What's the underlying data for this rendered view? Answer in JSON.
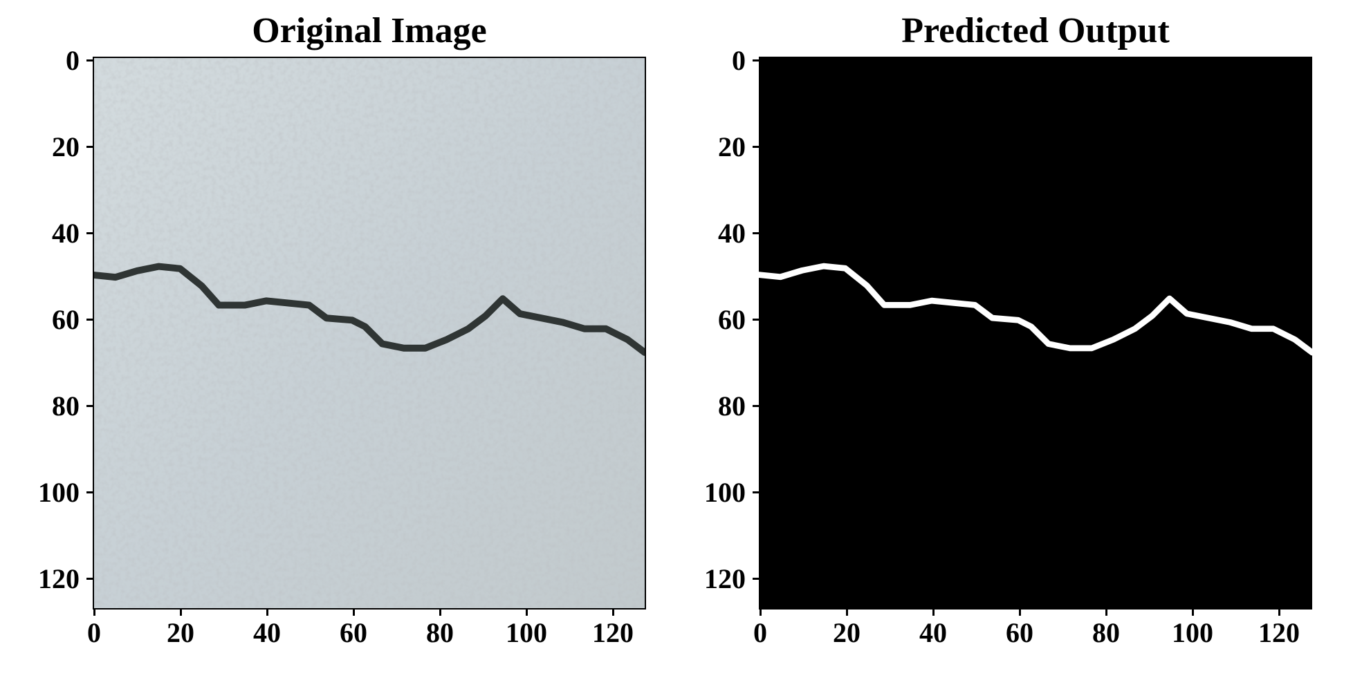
{
  "panels": [
    {
      "title": "Original Image",
      "y_ticks": [
        "0",
        "20",
        "40",
        "60",
        "80",
        "100",
        "120"
      ],
      "x_ticks": [
        "0",
        "20",
        "40",
        "60",
        "80",
        "100",
        "120"
      ]
    },
    {
      "title": "Predicted Output",
      "y_ticks": [
        "0",
        "20",
        "40",
        "60",
        "80",
        "100",
        "120"
      ],
      "x_ticks": [
        "0",
        "20",
        "40",
        "60",
        "80",
        "100",
        "120"
      ]
    }
  ],
  "image_extent": [
    0,
    128
  ],
  "crack_path": [
    [
      0,
      50.5
    ],
    [
      5,
      51
    ],
    [
      10,
      49.5
    ],
    [
      15,
      48.5
    ],
    [
      20,
      49
    ],
    [
      25,
      53
    ],
    [
      29,
      57.5
    ],
    [
      35,
      57.5
    ],
    [
      40,
      56.5
    ],
    [
      45,
      57
    ],
    [
      50,
      57.5
    ],
    [
      54,
      60.5
    ],
    [
      60,
      61
    ],
    [
      63,
      62.5
    ],
    [
      67,
      66.5
    ],
    [
      72,
      67.5
    ],
    [
      77,
      67.5
    ],
    [
      82,
      65.5
    ],
    [
      87,
      63
    ],
    [
      91,
      60
    ],
    [
      95,
      56
    ],
    [
      99,
      59.5
    ],
    [
      104,
      60.5
    ],
    [
      109,
      61.5
    ],
    [
      114,
      63
    ],
    [
      119,
      63
    ],
    [
      124,
      65.5
    ],
    [
      128,
      68.5
    ]
  ],
  "colors": {
    "concrete_base": "#cbd4d8",
    "crack": "#2f3534",
    "mask_background": "#000000",
    "mask_crack": "#ffffff"
  }
}
